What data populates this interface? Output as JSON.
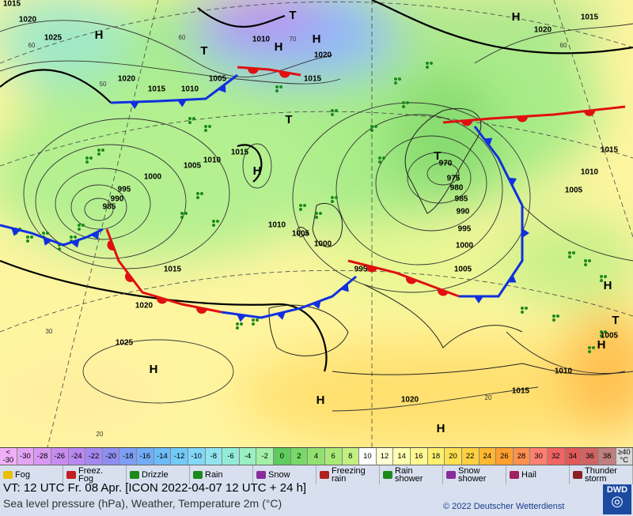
{
  "map": {
    "pressure_labels": [
      1015,
      1020,
      1025,
      1020,
      1015,
      1010,
      1005,
      1010,
      1015,
      1020,
      1015,
      1020,
      1015,
      1010,
      1005,
      1015,
      1010,
      1005,
      1000,
      995,
      990,
      985,
      970,
      975,
      980,
      985,
      990,
      995,
      1000,
      1005,
      1010,
      1005,
      1000,
      995,
      1015,
      1020,
      1025,
      1010,
      1005,
      1015,
      1020
    ],
    "pressure_centers": [
      "H",
      "T",
      "H",
      "H",
      "T",
      "H",
      "T",
      "H",
      "T",
      "H",
      "H",
      "H",
      "H",
      "T",
      "H"
    ],
    "grid_labels": [
      60,
      50,
      60,
      70,
      60,
      30,
      20,
      20
    ]
  },
  "temperature_scale": {
    "low": {
      "top": "<",
      "bottom": "-30",
      "color": "#f0b0f8"
    },
    "values": [
      -30,
      -28,
      -26,
      -24,
      -22,
      -20,
      -18,
      -16,
      -14,
      -12,
      -10,
      -8,
      -6,
      -4,
      -2,
      0,
      2,
      4,
      6,
      8,
      10,
      12,
      14,
      16,
      18,
      20,
      22,
      24,
      26,
      28,
      30,
      32,
      34,
      36,
      38
    ],
    "colors": [
      "#e4a4f4",
      "#d898f2",
      "#c88cf0",
      "#b888f2",
      "#a488f2",
      "#8e8ef2",
      "#7e9ef6",
      "#72acf6",
      "#6cbcf8",
      "#72caf8",
      "#82d8f8",
      "#90e4f0",
      "#92ecd8",
      "#9af0c0",
      "#a4f0a8",
      "#5ecc5e",
      "#78d868",
      "#92e070",
      "#aae878",
      "#c2f082",
      "#ffffff",
      "#ffffd2",
      "#ffffb0",
      "#fff890",
      "#fff070",
      "#ffe050",
      "#ffd040",
      "#ffb830",
      "#ffa030",
      "#ff9050",
      "#ff8070",
      "#f06464",
      "#e05a5a",
      "#d06464",
      "#c08080"
    ],
    "high": {
      "top": "≥40",
      "bottom": "°C",
      "color": "#d8d8d8"
    }
  },
  "legend": [
    "Fog",
    "Freez.\nFog",
    "Drizzle",
    "Rain",
    "Snow",
    "Freezing\nrain",
    "Rain\nshower",
    "Snow\nshower",
    "Hail",
    "Thunder\nstorm"
  ],
  "footer": {
    "valid_time": "VT: 12 UTC Fr.  08 Apr. [ICON 2022-04-07  12 UTC + 24 h]",
    "description": "Sea level pressure (hPa), Weather, Temperature 2m (°C)",
    "copyright": "© 2022 Deutscher Wetterdienst",
    "logo": "DWD"
  }
}
